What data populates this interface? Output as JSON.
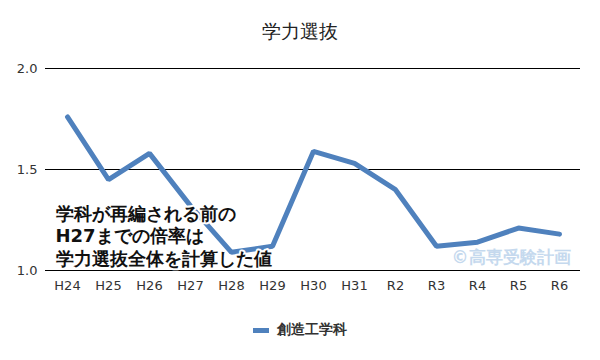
{
  "chart_data": {
    "type": "line",
    "title": "学力選抜",
    "categories": [
      "H24",
      "H25",
      "H26",
      "H27",
      "H28",
      "H29",
      "H30",
      "H31",
      "R2",
      "R3",
      "R4",
      "R5",
      "R6"
    ],
    "series": [
      {
        "name": "創造工学科",
        "color": "#4f81bd",
        "values": [
          1.76,
          1.45,
          1.58,
          1.32,
          1.09,
          1.12,
          1.59,
          1.53,
          1.4,
          1.12,
          1.14,
          1.21,
          1.18
        ]
      }
    ],
    "ylim": [
      1.0,
      2.0
    ],
    "yticks": [
      {
        "value": 1.0,
        "label": "1.0"
      },
      {
        "value": 1.5,
        "label": "1.5"
      },
      {
        "value": 2.0,
        "label": "2.0"
      }
    ],
    "grid": true,
    "legend": "bottom",
    "annotations": [
      "学科が再編される前の\nH27までの倍率は\n学力選抜全体を計算した値",
      "©高専受験計画"
    ]
  }
}
